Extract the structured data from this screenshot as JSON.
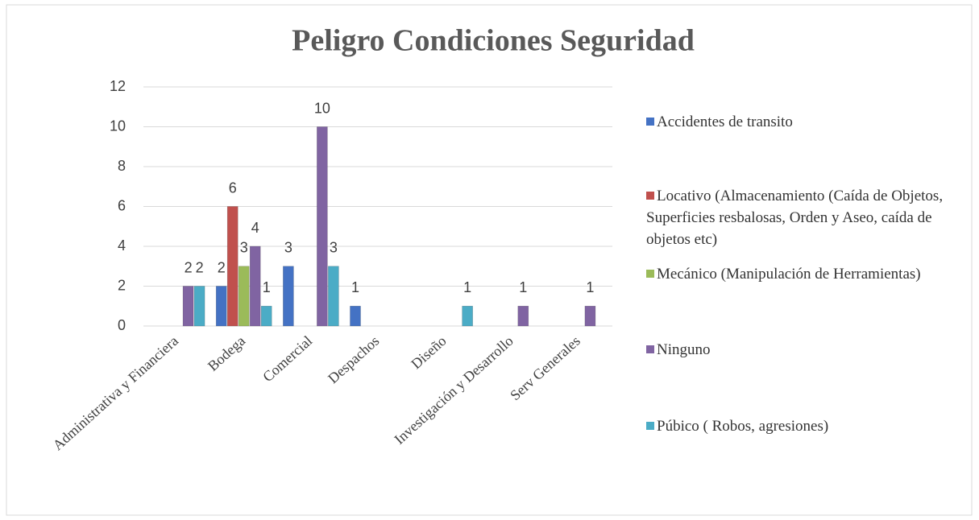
{
  "chart_data": {
    "type": "bar",
    "title": "Peligro Condiciones Seguridad",
    "categories": [
      "Administrativa y Financiera",
      "Bodega",
      "Comercial",
      "Despachos",
      "Diseño",
      "Investigación y Desarrollo",
      "Serv Generales"
    ],
    "series": [
      {
        "name": "Accidentes de transito",
        "color": "#4472c4",
        "values": [
          null,
          2,
          3,
          1,
          null,
          null,
          null
        ]
      },
      {
        "name": "Locativo (Almacenamiento (Caída de Objetos, Superficies resbalosas, Orden y Aseo, caída de objetos etc)",
        "color": "#c0504d",
        "values": [
          null,
          6,
          null,
          null,
          null,
          null,
          null
        ]
      },
      {
        "name": "Mecánico (Manipulación de Herramientas)",
        "color": "#9bbb59",
        "values": [
          null,
          3,
          null,
          null,
          null,
          null,
          null
        ]
      },
      {
        "name": "Ninguno",
        "color": "#8064a2",
        "values": [
          2,
          4,
          10,
          null,
          null,
          1,
          1
        ]
      },
      {
        "name": "Púbico ( Robos, agresiones)",
        "color": "#4bacc6",
        "values": [
          2,
          1,
          3,
          null,
          1,
          null,
          null
        ]
      }
    ],
    "ylim": [
      0,
      12
    ],
    "yticks": [
      0,
      2,
      4,
      6,
      8,
      10,
      12
    ],
    "grid": true,
    "legend": "right"
  }
}
